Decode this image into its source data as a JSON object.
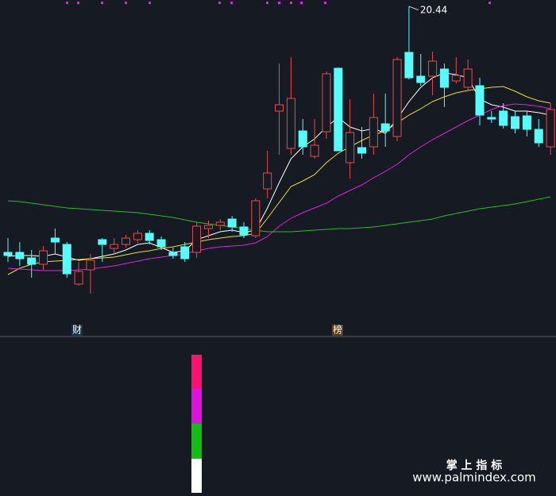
{
  "chart_data": {
    "type": "candlestick",
    "ylim": [
      12.2,
      20.6
    ],
    "up_color": "#f04848",
    "down_color": "#54fcfc",
    "open": [
      14.24,
      14.24,
      14.1,
      13.94,
      14.6,
      14.44,
      13.44,
      13.8,
      14.56,
      14.34,
      14.44,
      14.56,
      14.72,
      14.56,
      14.24,
      14.38,
      14.24,
      14.84,
      14.92,
      15.08,
      14.88,
      14.66,
      15.84,
      17.8,
      16.86,
      17.3,
      16.66,
      17.28,
      18.88,
      16.5,
      16.88,
      16.9,
      17.48,
      17.16,
      19.28,
      18.68,
      18.68,
      18.86,
      18.56,
      18.4,
      18.44,
      17.64,
      17.8,
      17.66,
      17.68,
      17.34,
      16.9
    ],
    "high": [
      14.6,
      14.5,
      14.3,
      14.4,
      14.84,
      14.5,
      14.0,
      14.2,
      14.6,
      14.6,
      14.68,
      14.8,
      14.8,
      14.64,
      14.36,
      14.5,
      15.0,
      15.04,
      15.08,
      15.16,
      15.0,
      15.6,
      16.8,
      19.0,
      19.16,
      17.6,
      17.6,
      18.8,
      18.9,
      18.1,
      17.4,
      18.24,
      18.24,
      19.16,
      20.44,
      19.24,
      19.3,
      19.0,
      19.16,
      19.1,
      18.64,
      17.8,
      18.0,
      17.8,
      17.8,
      17.6,
      18.0
    ],
    "low": [
      14.0,
      13.9,
      13.6,
      13.8,
      14.2,
      13.6,
      13.4,
      13.2,
      14.0,
      14.2,
      14.36,
      14.48,
      14.44,
      14.3,
      14.08,
      14.0,
      14.1,
      14.6,
      14.8,
      14.76,
      14.6,
      14.6,
      15.6,
      16.7,
      16.7,
      16.7,
      16.6,
      17.1,
      16.8,
      16.1,
      16.6,
      16.7,
      16.9,
      17.04,
      18.6,
      18.44,
      18.2,
      17.9,
      18.5,
      18.3,
      17.44,
      17.5,
      17.36,
      17.24,
      17.16,
      16.9,
      16.7
    ],
    "close": [
      14.16,
      14.08,
      13.94,
      14.28,
      14.5,
      13.7,
      13.76,
      14.04,
      14.44,
      14.44,
      14.6,
      14.72,
      14.54,
      14.38,
      14.16,
      14.08,
      14.9,
      14.92,
      15.0,
      14.88,
      14.68,
      15.54,
      16.24,
      17.96,
      18.12,
      16.9,
      16.94,
      18.74,
      16.8,
      17.26,
      16.74,
      17.64,
      17.3,
      19.1,
      18.64,
      18.52,
      19.06,
      18.4,
      18.7,
      18.86,
      17.7,
      17.6,
      17.44,
      17.36,
      17.34,
      17.0,
      17.84
    ],
    "series": [
      {
        "color": "#ffffff",
        "values": [
          14.14,
          14.16,
          14.16,
          14.14,
          14.2,
          14.12,
          14.04,
          14.08,
          14.14,
          14.2,
          14.3,
          14.44,
          14.48,
          14.36,
          14.24,
          14.28,
          14.56,
          14.66,
          14.76,
          14.8,
          14.74,
          14.8,
          15.36,
          16.0,
          16.6,
          16.9,
          17.1,
          17.4,
          17.64,
          17.4,
          17.3,
          17.36,
          17.24,
          17.6,
          18.04,
          18.4,
          18.64,
          18.76,
          18.72,
          18.64,
          18.1,
          17.96,
          17.9,
          17.8,
          17.8,
          17.76,
          17.7
        ]
      },
      {
        "color": "#e8e020",
        "values": [
          13.68,
          13.84,
          13.94,
          14.0,
          14.02,
          14.04,
          14.06,
          14.08,
          14.1,
          14.12,
          14.18,
          14.24,
          14.28,
          14.34,
          14.38,
          14.44,
          14.5,
          14.56,
          14.6,
          14.64,
          14.66,
          14.72,
          15.1,
          15.5,
          15.9,
          16.04,
          16.2,
          16.5,
          16.74,
          16.9,
          17.06,
          17.2,
          17.3,
          17.5,
          17.7,
          17.86,
          18.04,
          18.16,
          18.26,
          18.32,
          18.36,
          18.4,
          18.42,
          18.3,
          18.16,
          18.06,
          18.0
        ]
      },
      {
        "color": "#e020e0",
        "values": [
          13.84,
          13.82,
          13.8,
          13.78,
          13.78,
          13.78,
          13.8,
          13.82,
          13.86,
          13.9,
          13.96,
          14.02,
          14.08,
          14.12,
          14.16,
          14.2,
          14.28,
          14.34,
          14.38,
          14.4,
          14.42,
          14.48,
          14.64,
          14.9,
          15.1,
          15.24,
          15.36,
          15.48,
          15.66,
          15.8,
          15.94,
          16.12,
          16.28,
          16.46,
          16.7,
          16.9,
          17.08,
          17.24,
          17.4,
          17.56,
          17.7,
          17.84,
          17.94,
          17.98,
          17.96,
          17.92,
          17.86
        ]
      },
      {
        "color": "#20c020",
        "values": [
          15.54,
          15.52,
          15.48,
          15.44,
          15.4,
          15.36,
          15.34,
          15.32,
          15.3,
          15.28,
          15.26,
          15.24,
          15.2,
          15.16,
          15.12,
          15.06,
          15.0,
          14.96,
          14.92,
          14.88,
          14.84,
          14.8,
          14.76,
          14.76,
          14.76,
          14.78,
          14.8,
          14.82,
          14.84,
          14.84,
          14.86,
          14.88,
          14.92,
          14.96,
          15.0,
          15.04,
          15.08,
          15.16,
          15.22,
          15.28,
          15.34,
          15.38,
          15.42,
          15.46,
          15.52,
          15.58,
          15.64
        ]
      }
    ],
    "annotations": [
      "财",
      "榜"
    ]
  },
  "watermark": {
    "title": "掌 上 指 标",
    "url": "www.palmindex.com"
  }
}
